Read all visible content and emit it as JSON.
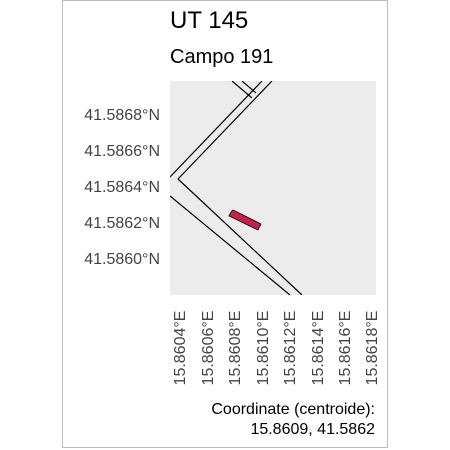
{
  "title": "UT 145",
  "subtitle": "Campo 191",
  "map": {
    "background_color": "#ececec",
    "road_color": "#000000",
    "feature_color": "#c8204a",
    "lat_labels": [
      "41.5868°N",
      "41.5866°N",
      "41.5864°N",
      "41.5862°N",
      "41.5860°N"
    ],
    "lon_labels": [
      "15.8604°E",
      "15.8606°E",
      "15.8608°E",
      "15.8610°E",
      "15.8612°E",
      "15.8614°E",
      "15.8616°E",
      "15.8618°E"
    ]
  },
  "footer": {
    "coordinate_label": "Coordinate (centroide):",
    "coordinate_value": "15.8609, 41.5862"
  }
}
